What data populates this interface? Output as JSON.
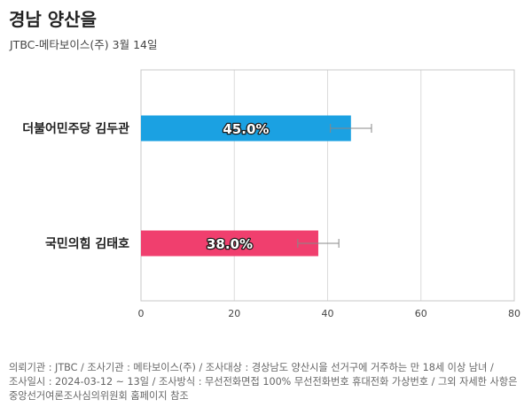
{
  "header": {
    "title": "경남 양산을",
    "subtitle": "JTBC-메타보이스(주) 3월 14일"
  },
  "chart_data": {
    "type": "bar",
    "orientation": "horizontal",
    "categories": [
      "더불어민주당 김두관",
      "국민의힘 김태호"
    ],
    "values": [
      45.0,
      38.0
    ],
    "value_labels": [
      "45.0%",
      "38.0%"
    ],
    "error_bars": [
      [
        40.6,
        49.4
      ],
      [
        33.6,
        42.4
      ]
    ],
    "colors": [
      "#1ba1e2",
      "#f03f6e"
    ],
    "xlim": [
      0,
      80
    ],
    "xticks": [
      "0",
      "20",
      "40",
      "60",
      "80"
    ],
    "grid": true
  },
  "footer": {
    "lines": [
      "의뢰기관 : JTBC / 조사기관 : 메타보이스(주) / 조사대상 : 경상남도 양산시을 선거구에 거주하는 만 18세 이상 남녀 /",
      "조사일시 : 2024-03-12 ~ 13일 / 조사방식 : 무선전화면접 100% 무선전화번호 휴대전화 가상번호 / 그외 자세한 사항은",
      "중앙선거여론조사심의위원회 홈페이지 참조"
    ]
  }
}
